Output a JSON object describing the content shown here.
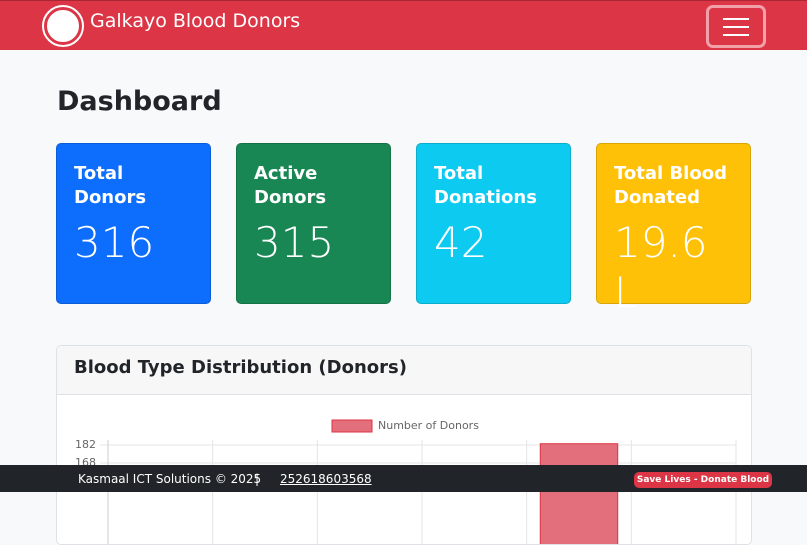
{
  "navbar": {
    "brand": "Galkayo Blood Donors"
  },
  "page": {
    "heading": "Dashboard"
  },
  "cards": [
    {
      "title": "Total Donors",
      "value": "316",
      "color": "#0d6efd"
    },
    {
      "title": "Active Donors",
      "value": "315",
      "color": "#198754"
    },
    {
      "title": "Total Donations",
      "value": "42",
      "color": "#0dcaf0"
    },
    {
      "title": "Total Blood Donated",
      "value": "19.6 L",
      "color": "#ffc107"
    }
  ],
  "chart_card": {
    "title": "Blood Type Distribution (Donors)"
  },
  "chart_data": {
    "type": "bar",
    "categories": [
      null,
      null,
      null,
      null,
      null,
      null
    ],
    "series": [
      {
        "name": "Number of Donors",
        "color": "#e46f7c",
        "values": [
          null,
          null,
          null,
          null,
          183,
          null
        ]
      }
    ],
    "ylim": [
      166,
      186
    ],
    "yticks": [
      168,
      182
    ],
    "grid": true
  },
  "footer": {
    "company": "Kasmaal ICT Solutions © 2025",
    "separator": "|",
    "phone": "252618603568",
    "badge": "Save Lives - Donate Blood"
  }
}
